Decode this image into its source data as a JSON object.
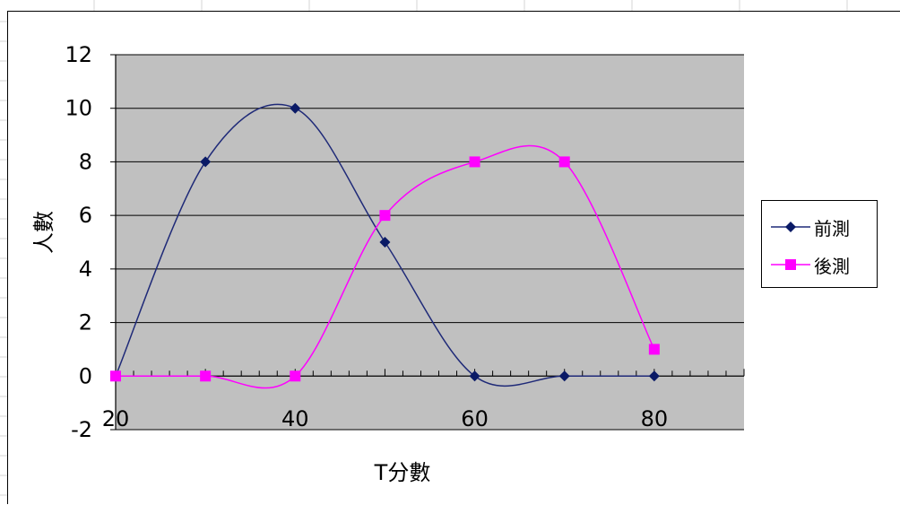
{
  "chart_data": {
    "type": "line",
    "x": [
      20,
      30,
      40,
      50,
      60,
      70,
      80
    ],
    "series": [
      {
        "name": "前測",
        "values": [
          0,
          8,
          10,
          5,
          0,
          0,
          0
        ],
        "color": "#1f2a78",
        "marker": "diamond",
        "marker_color": "#0a1a66"
      },
      {
        "name": "後測",
        "values": [
          0,
          0,
          0,
          6,
          8,
          8,
          1
        ],
        "color": "#ff00ff",
        "marker": "square",
        "marker_color": "#ff00ff"
      }
    ],
    "xlabel": "T分數",
    "ylabel": "人數",
    "xlim": [
      20,
      90
    ],
    "ylim": [
      -2,
      12
    ],
    "x_ticks": [
      "20",
      "40",
      "60",
      "80"
    ],
    "x_tick_values": [
      20,
      40,
      60,
      80
    ],
    "y_ticks": [
      "-2",
      "0",
      "2",
      "4",
      "6",
      "8",
      "10",
      "12"
    ],
    "y_tick_values": [
      -2,
      0,
      2,
      4,
      6,
      8,
      10,
      12
    ],
    "grid": true,
    "smooth": true,
    "plot_background": "#c0c0c0",
    "legend_position": "right"
  }
}
